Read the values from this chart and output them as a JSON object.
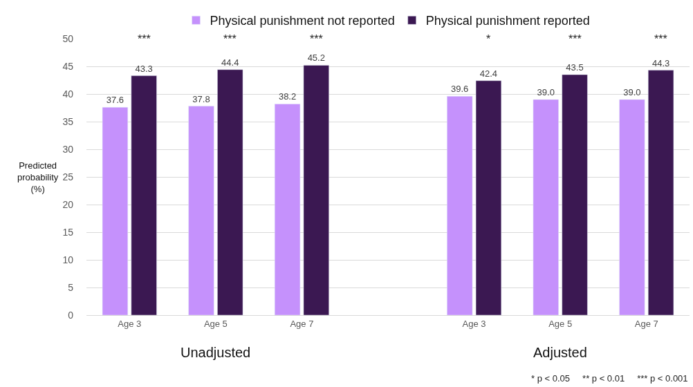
{
  "chart_data": {
    "type": "bar",
    "categories": [
      "Age 3",
      "Age 5",
      "Age 7",
      null,
      "Age 3",
      "Age 5",
      "Age 7"
    ],
    "ylabel": "Predicted probability (%)",
    "series": [
      {
        "name": "Physical punishment not reported",
        "color": "#c591fc",
        "values": [
          37.6,
          37.8,
          38.2,
          null,
          39.6,
          39.0,
          39.0
        ],
        "value_labels": [
          "37.6",
          "37.8",
          "38.2",
          null,
          "39.6",
          "39.0",
          "39.0"
        ]
      },
      {
        "name": "Physical punishment reported",
        "color": "#3b1852",
        "values": [
          43.3,
          44.4,
          45.2,
          null,
          42.4,
          43.5,
          44.3
        ],
        "value_labels": [
          "43.3",
          "44.4",
          "45.2",
          null,
          "42.4",
          "43.5",
          "44.3"
        ]
      }
    ],
    "ylim": [
      0,
      50
    ],
    "yticks": [
      0,
      5,
      10,
      15,
      20,
      25,
      30,
      35,
      40,
      45,
      50
    ],
    "grid": "y",
    "legend": "top",
    "annotations": [
      "***",
      "***",
      "***",
      "*",
      "***",
      "***",
      "Unadjusted",
      "Adjusted",
      "* p < 0.05     ** p < 0.01     *** p < 0.001"
    ]
  }
}
